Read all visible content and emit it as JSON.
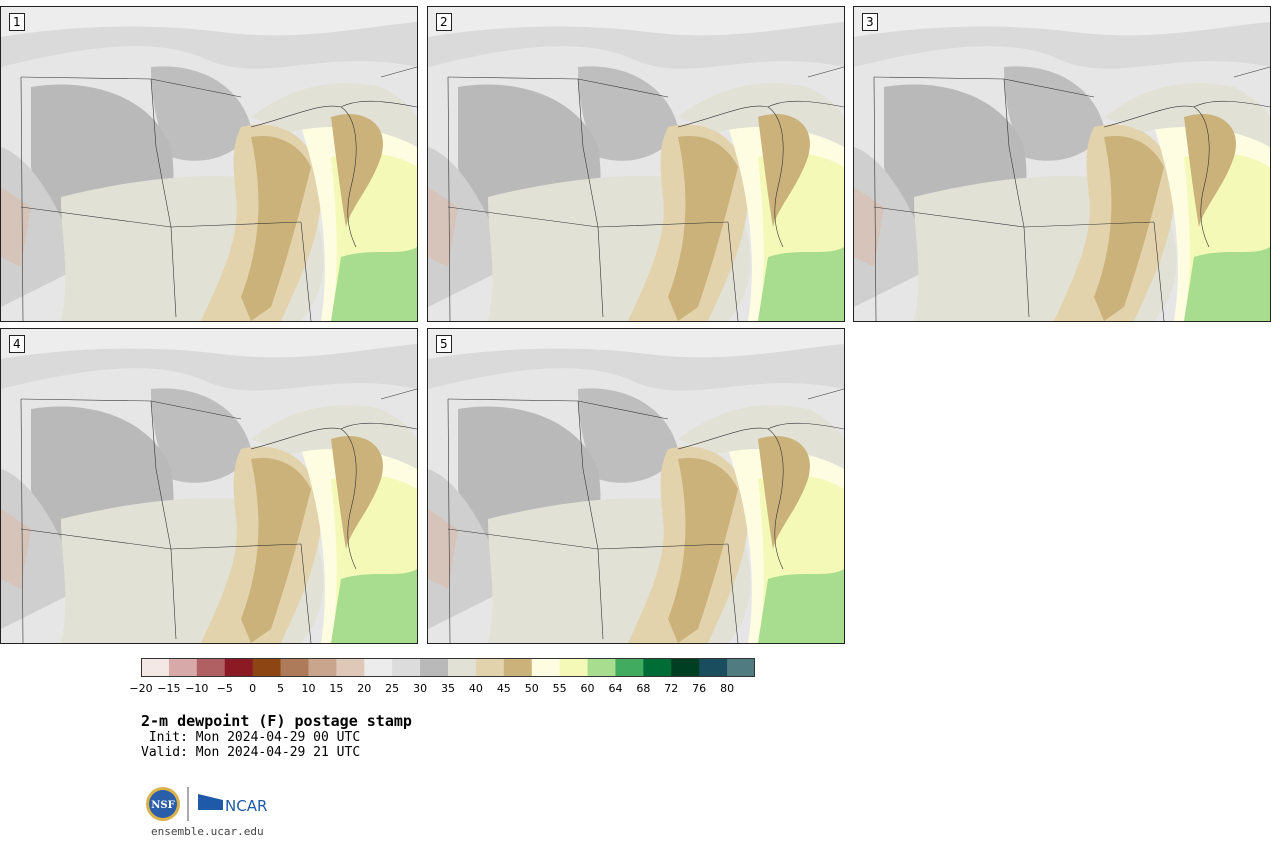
{
  "panels": [
    {
      "label": "1"
    },
    {
      "label": "2"
    },
    {
      "label": "3"
    },
    {
      "label": "4"
    },
    {
      "label": "5"
    }
  ],
  "colorbar": {
    "colors": [
      "#f4e8e6",
      "#d7a9a9",
      "#b05f63",
      "#8b1a25",
      "#8c4513",
      "#ad7a5a",
      "#c9a58d",
      "#e0c8b8",
      "#ececec",
      "#dcdcdc",
      "#b9b9b9",
      "#e1e1d6",
      "#e2d3ad",
      "#cbb27b",
      "#fefde2",
      "#f4f9b8",
      "#a8dd90",
      "#41ac5f",
      "#006d36",
      "#013f23",
      "#1a4e5e",
      "#507b80"
    ],
    "ticks": [
      "−20",
      "−15",
      "−10",
      "−5",
      "0",
      "5",
      "10",
      "15",
      "20",
      "25",
      "30",
      "35",
      "40",
      "45",
      "50",
      "55",
      "60",
      "64",
      "68",
      "72",
      "76",
      "80"
    ]
  },
  "title": "2-m dewpoint (F) postage stamp",
  "init": " Init: Mon 2024-04-29 00 UTC",
  "valid": "Valid: Mon 2024-04-29 21 UTC",
  "logos": {
    "nsf": "NSF",
    "ncar": "NCAR"
  },
  "site": "ensemble.ucar.edu"
}
